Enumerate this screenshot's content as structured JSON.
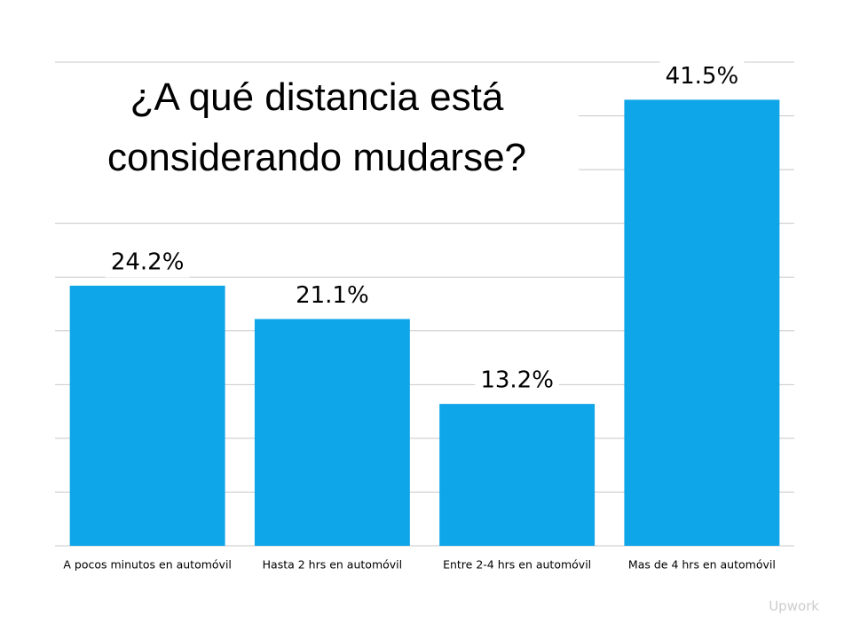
{
  "chart_data": {
    "type": "bar",
    "title": "¿A qué distancia está considerando mudarse?",
    "categories": [
      "A pocos minutos en automóvil",
      "Hasta 2 hrs en automóvil",
      "Entre 2-4 hrs en automóvil",
      "Mas de 4 hrs en automóvil"
    ],
    "values": [
      24.2,
      21.1,
      13.2,
      41.5
    ],
    "value_labels": [
      "24.2%",
      "21.1%",
      "13.2%",
      "41.5%"
    ],
    "color": "#0ea5e9",
    "ylim": [
      0,
      45
    ],
    "yticks": [
      0,
      5,
      10,
      15,
      20,
      25,
      30,
      35,
      40,
      45
    ],
    "grid": true
  },
  "watermark": "Upwork"
}
